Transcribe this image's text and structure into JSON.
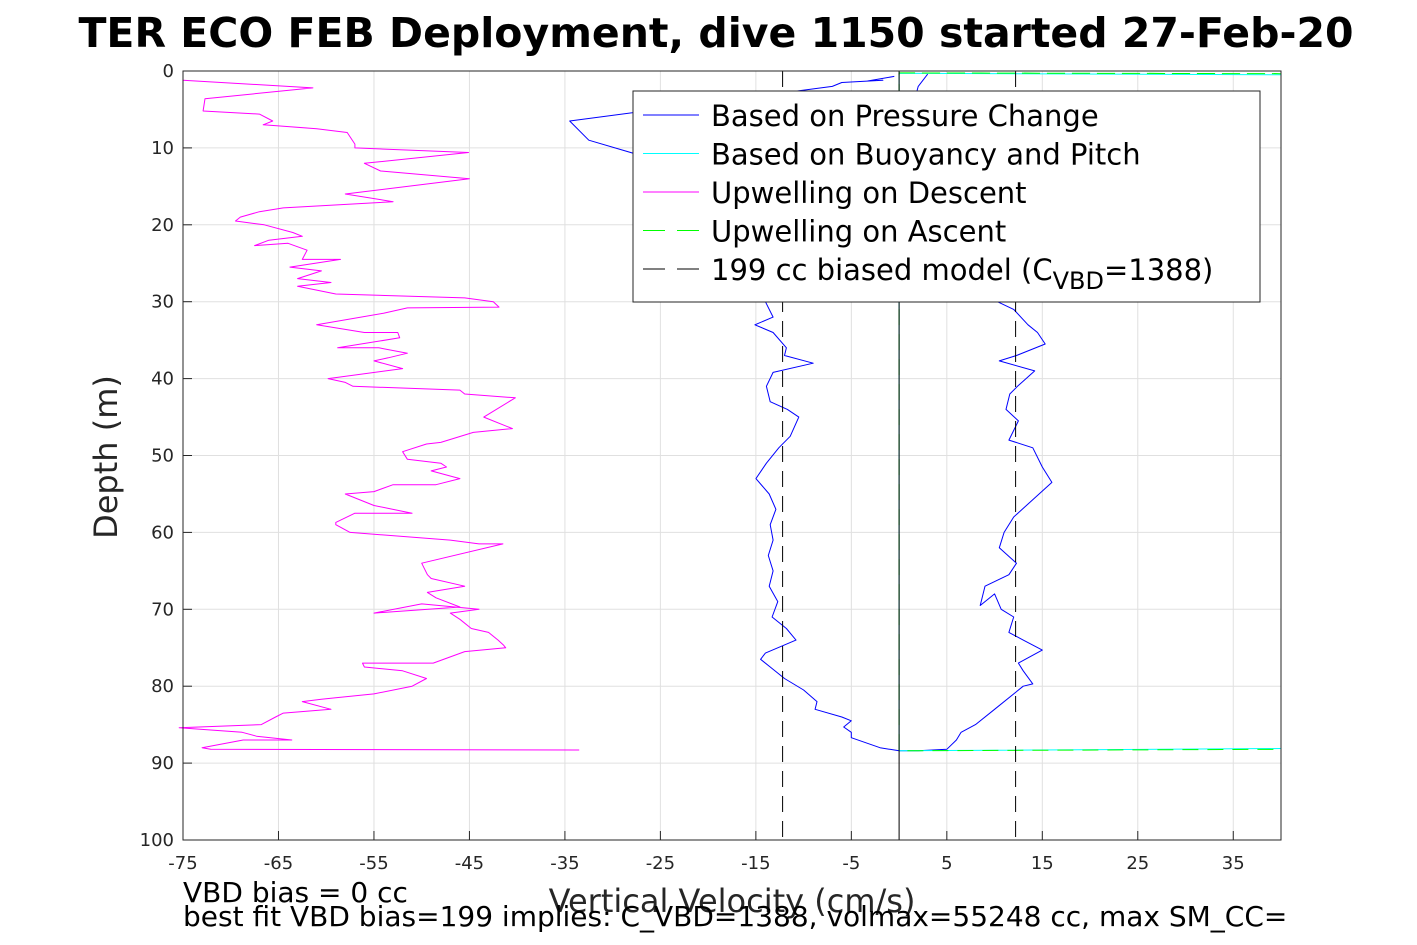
{
  "chart_data": {
    "type": "line",
    "title": "TER ECO FEB Deployment, dive 1150 started 27-Feb-20",
    "xlabel": "Vertical Velocity (cm/s)",
    "ylabel": "Depth (m)",
    "xlim": [
      -75,
      40
    ],
    "ylim": [
      0,
      100
    ],
    "y_reversed": true,
    "grid": true,
    "legend_placement": "top-right",
    "xticks": [
      -75,
      -65,
      -55,
      -45,
      -35,
      -25,
      -15,
      -5,
      5,
      15,
      25,
      35
    ],
    "yticks": [
      0,
      10,
      20,
      30,
      40,
      50,
      60,
      70,
      80,
      90,
      100
    ],
    "legend": [
      {
        "label": "Based on Pressure Change",
        "color": "#0000ff",
        "dash": "solid"
      },
      {
        "label": "Based on Buoyancy and Pitch",
        "color": "#00ffff",
        "dash": "solid"
      },
      {
        "label": "Upwelling on Descent",
        "color": "#ff00ff",
        "dash": "solid"
      },
      {
        "label": "Upwelling on Ascent",
        "color": "#00ff00",
        "dash": "dashed"
      },
      {
        "label": "199 cc biased model (C",
        "sub": "VBD",
        "suffix": "=1388)",
        "color": "#000000",
        "dash": "dashed"
      }
    ],
    "series": [
      {
        "name": "Based on Pressure Change",
        "color": "#0000ff",
        "dash": "solid",
        "points": [
          [
            -0.5,
            0.7
          ],
          [
            -3.3,
            1.3
          ],
          [
            -1.7,
            1.2
          ],
          [
            -6.0,
            1.5
          ],
          [
            -7.0,
            2.0
          ],
          [
            -34.5,
            6.5
          ],
          [
            -32.5,
            9.0
          ],
          [
            -27,
            11
          ],
          [
            -24,
            13
          ],
          [
            -21,
            16
          ],
          [
            -19,
            19
          ],
          [
            -17,
            23
          ],
          [
            -15,
            27
          ],
          [
            -14,
            30
          ],
          [
            -13.2,
            32
          ],
          [
            -15.1,
            33
          ],
          [
            -13.2,
            34
          ],
          [
            -11.8,
            36
          ],
          [
            -12,
            37
          ],
          [
            -9,
            38
          ],
          [
            -13.2,
            39.2
          ],
          [
            -13.9,
            41
          ],
          [
            -13.5,
            43
          ],
          [
            -11.7,
            44
          ],
          [
            -10.5,
            45
          ],
          [
            -11.4,
            47.5
          ],
          [
            -12.6,
            49
          ],
          [
            -13.9,
            51
          ],
          [
            -15,
            53
          ],
          [
            -13.6,
            55
          ],
          [
            -12.9,
            57
          ],
          [
            -13.5,
            59
          ],
          [
            -13.2,
            61
          ],
          [
            -13.7,
            63
          ],
          [
            -13.2,
            65
          ],
          [
            -13.6,
            67
          ],
          [
            -12.7,
            69
          ],
          [
            -13.3,
            71
          ],
          [
            -11.8,
            72.5
          ],
          [
            -10.8,
            74
          ],
          [
            -14,
            75.7
          ],
          [
            -14.5,
            76.5
          ],
          [
            -13.5,
            77.5
          ],
          [
            -12,
            79
          ],
          [
            -10,
            80.5
          ],
          [
            -8.6,
            82
          ],
          [
            -8.8,
            83
          ],
          [
            -6,
            84
          ],
          [
            -5,
            84.5
          ],
          [
            -5.8,
            85.3
          ],
          [
            -5,
            86
          ],
          [
            -5,
            86.7
          ],
          [
            -2,
            88
          ],
          [
            0,
            88.4
          ],
          [
            2,
            88.4
          ],
          [
            5,
            88.2
          ],
          [
            6,
            87
          ],
          [
            6.5,
            86
          ],
          [
            8,
            85
          ],
          [
            10,
            83
          ],
          [
            13,
            80
          ],
          [
            14,
            79.7
          ],
          [
            13,
            78
          ],
          [
            12.5,
            77
          ],
          [
            15,
            75.3
          ],
          [
            13,
            74
          ],
          [
            11.5,
            73
          ],
          [
            12,
            71
          ],
          [
            10.7,
            70
          ],
          [
            10,
            68
          ],
          [
            8.5,
            69.5
          ],
          [
            9,
            67
          ],
          [
            11.5,
            65.5
          ],
          [
            12.3,
            64
          ],
          [
            10.5,
            62
          ],
          [
            11,
            60
          ],
          [
            12,
            58
          ],
          [
            16,
            53.5
          ],
          [
            15,
            51.5
          ],
          [
            14,
            49
          ],
          [
            11.5,
            48
          ],
          [
            12.5,
            45.5
          ],
          [
            11.2,
            44
          ],
          [
            11.6,
            42
          ],
          [
            12.4,
            41
          ],
          [
            14.2,
            39
          ],
          [
            10.5,
            37.7
          ],
          [
            12.3,
            37
          ],
          [
            15.3,
            35.5
          ],
          [
            14.5,
            34
          ],
          [
            13.5,
            33
          ],
          [
            12,
            31
          ],
          [
            10.3,
            30
          ],
          [
            8,
            28
          ],
          [
            3,
            20
          ],
          [
            0.5,
            15
          ],
          [
            0.5,
            13
          ],
          [
            0.5,
            9
          ],
          [
            2,
            2
          ],
          [
            3,
            0.4
          ]
        ]
      },
      {
        "name": "Based on Buoyancy and Pitch",
        "color": "#00ffff",
        "dash": "solid",
        "points": [
          [
            0,
            0.3
          ],
          [
            40,
            0.5
          ],
          [
            0,
            0.3
          ],
          [
            0,
            88.4
          ],
          [
            40,
            88.1
          ]
        ]
      },
      {
        "name": "Upwelling on Descent",
        "color": "#ff00ff",
        "dash": "solid",
        "points": [
          [
            -75,
            1.2
          ],
          [
            -61.4,
            2.2
          ],
          [
            -72.7,
            3.6
          ],
          [
            -72.9,
            5.2
          ],
          [
            -67,
            5.6
          ],
          [
            -65.6,
            6.5
          ],
          [
            -66.6,
            7
          ],
          [
            -61,
            7.5
          ],
          [
            -57.8,
            8
          ],
          [
            -57,
            9.5
          ],
          [
            -57,
            10
          ],
          [
            -45.1,
            10.6
          ],
          [
            -56,
            12
          ],
          [
            -54.3,
            13
          ],
          [
            -45,
            14
          ],
          [
            -58,
            16
          ],
          [
            -53,
            17
          ],
          [
            -64.5,
            17.8
          ],
          [
            -67,
            18.3
          ],
          [
            -69,
            19
          ],
          [
            -69.5,
            19.5
          ],
          [
            -66.5,
            20
          ],
          [
            -63.5,
            21
          ],
          [
            -62.5,
            21.5
          ],
          [
            -66,
            22
          ],
          [
            -67.5,
            22.7
          ],
          [
            -64,
            22.4
          ],
          [
            -62,
            23.3
          ],
          [
            -62.5,
            24.5
          ],
          [
            -58.5,
            24.5
          ],
          [
            -63.8,
            25.5
          ],
          [
            -60.5,
            26
          ],
          [
            -63,
            27
          ],
          [
            -59.5,
            27.5
          ],
          [
            -63,
            28
          ],
          [
            -59,
            29
          ],
          [
            -45.5,
            29.5
          ],
          [
            -42.5,
            30
          ],
          [
            -41.9,
            30.7
          ],
          [
            -51.5,
            30.8
          ],
          [
            -54,
            31.5
          ],
          [
            -61,
            33
          ],
          [
            -56,
            34
          ],
          [
            -52.5,
            34
          ],
          [
            -52.3,
            34.7
          ],
          [
            -58.8,
            36
          ],
          [
            -54.5,
            36
          ],
          [
            -51.5,
            36.7
          ],
          [
            -53.5,
            37.3
          ],
          [
            -55,
            37.7
          ],
          [
            -52,
            38.7
          ],
          [
            -59.8,
            40
          ],
          [
            -58,
            40.5
          ],
          [
            -57.2,
            41
          ],
          [
            -46,
            41.5
          ],
          [
            -45.5,
            42
          ],
          [
            -40.2,
            42.5
          ],
          [
            -43.5,
            45
          ],
          [
            -40.5,
            46.5
          ],
          [
            -44.6,
            47
          ],
          [
            -48,
            48.3
          ],
          [
            -49.5,
            48.5
          ],
          [
            -52,
            49.5
          ],
          [
            -51.5,
            50.5
          ],
          [
            -48,
            51
          ],
          [
            -47.4,
            51.5
          ],
          [
            -49,
            52
          ],
          [
            -46,
            53
          ],
          [
            -48.5,
            53.8
          ],
          [
            -53,
            53.8
          ],
          [
            -55,
            54.7
          ],
          [
            -58,
            55
          ],
          [
            -55,
            56.5
          ],
          [
            -51,
            57.5
          ],
          [
            -57,
            57.5
          ],
          [
            -59,
            58.7
          ],
          [
            -59,
            59
          ],
          [
            -57.5,
            60
          ],
          [
            -47,
            61
          ],
          [
            -44,
            61.5
          ],
          [
            -41.5,
            61.5
          ],
          [
            -50,
            64
          ],
          [
            -49.4,
            65.5
          ],
          [
            -49,
            66
          ],
          [
            -45.5,
            67
          ],
          [
            -49.4,
            67.8
          ],
          [
            -48.5,
            68.5
          ],
          [
            -46,
            69.7
          ],
          [
            -55,
            70.5
          ],
          [
            -50,
            69.3
          ],
          [
            -44,
            70
          ],
          [
            -47,
            70.5
          ],
          [
            -46,
            71.3
          ],
          [
            -44.8,
            72.5
          ],
          [
            -43,
            73
          ],
          [
            -42,
            74
          ],
          [
            -41.4,
            74.7
          ],
          [
            -41.2,
            75
          ],
          [
            -45.5,
            75.5
          ],
          [
            -48.8,
            77
          ],
          [
            -56.2,
            77
          ],
          [
            -56,
            77.5
          ],
          [
            -52,
            78
          ],
          [
            -49.5,
            79
          ],
          [
            -51,
            80
          ],
          [
            -55,
            81
          ],
          [
            -59,
            81.5
          ],
          [
            -60.5,
            81.7
          ],
          [
            -62.5,
            82
          ],
          [
            -59.5,
            83
          ],
          [
            -64.5,
            83.5
          ],
          [
            -65.3,
            84
          ],
          [
            -66.8,
            85
          ],
          [
            -75.4,
            85.4
          ],
          [
            -68.8,
            86
          ],
          [
            -67.3,
            86.5
          ],
          [
            -63.6,
            87
          ],
          [
            -68.7,
            87
          ],
          [
            -73,
            88
          ],
          [
            -72.1,
            88.2
          ],
          [
            -33.5,
            88.3
          ]
        ]
      },
      {
        "name": "Upwelling on Ascent",
        "color": "#00ff00",
        "dash": "dashed",
        "points": [
          [
            0,
            0.25
          ],
          [
            40,
            0.35
          ],
          [
            0,
            0.25
          ],
          [
            0,
            88.4
          ],
          [
            40,
            88.2
          ]
        ]
      },
      {
        "name": "199 cc biased model",
        "color": "#000000",
        "dash": "dashed",
        "points": [
          [
            -12.2,
            0
          ],
          [
            -12.2,
            100
          ]
        ]
      },
      {
        "name": "199 cc biased model (ascent)",
        "color": "#000000",
        "dash": "dashed",
        "points": [
          [
            12.2,
            0
          ],
          [
            12.2,
            100
          ]
        ]
      },
      {
        "name": "zero line",
        "color": "#000000",
        "dash": "solid",
        "points": [
          [
            0,
            0
          ],
          [
            0,
            100
          ]
        ]
      }
    ]
  },
  "footer": {
    "line1": "VBD bias = 0 cc",
    "line2": "best fit VBD bias=199 implies: C_VBD=1388, volmax=55248 cc, max SM_CC="
  }
}
